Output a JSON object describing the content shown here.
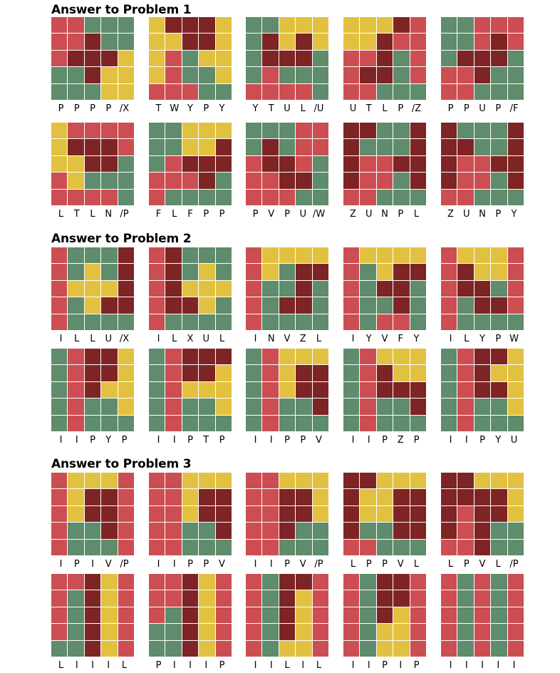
{
  "colors": {
    "R": "#cc4e52",
    "D": "#7e2424",
    "G": "#5e8c6c",
    "Y": "#e2c141"
  },
  "sections": [
    {
      "title": "Answer to Problem 1",
      "puzzles": [
        {
          "grid": [
            "RRGGG",
            "RRDGG",
            "RDDDY",
            "GGDYY",
            "GGGYY"
          ],
          "labels": [
            "P",
            "P",
            "P",
            "P",
            "/X"
          ]
        },
        {
          "grid": [
            "YDDDY",
            "YYDDY",
            "YRGYY",
            "YRGGY",
            "RRRGG"
          ],
          "labels": [
            "T",
            "W",
            "Y",
            "P",
            "Y"
          ]
        },
        {
          "grid": [
            "GGYYY",
            "GDYDY",
            "GDDDG",
            "GRGGG",
            "RRRRG"
          ],
          "labels": [
            "Y",
            "T",
            "U",
            "L",
            "/U"
          ]
        },
        {
          "grid": [
            "YYYDR",
            "YYDRR",
            "RRDGR",
            "RDDGR",
            "RRGGG"
          ],
          "labels": [
            "U",
            "T",
            "L",
            "P",
            "/Z"
          ]
        },
        {
          "grid": [
            "GGRRR",
            "GGRDR",
            "GDDDG",
            "RRDGG",
            "RRGGG"
          ],
          "labels": [
            "P",
            "P",
            "U",
            "P",
            "/F"
          ]
        }
      ]
    },
    {
      "title": "",
      "puzzles": [
        {
          "grid": [
            "YRRRR",
            "YDDDR",
            "YYDDG",
            "RYGGG",
            "RRRRG"
          ],
          "labels": [
            "L",
            "T",
            "L",
            "N",
            "/P"
          ]
        },
        {
          "grid": [
            "GGYYY",
            "GGYYD",
            "GRDDD",
            "RRRDG",
            "RGGGG"
          ],
          "labels": [
            "F",
            "L",
            "F",
            "P",
            "P"
          ]
        },
        {
          "grid": [
            "GGGRR",
            "GDGRR",
            "RDDRG",
            "RRDDG",
            "RRRGG"
          ],
          "labels": [
            "P",
            "V",
            "P",
            "U",
            "/W"
          ]
        },
        {
          "grid": [
            "DDGGD",
            "DGGGD",
            "DRRDD",
            "DRRGD",
            "RRGGG"
          ],
          "labels": [
            "Z",
            "U",
            "N",
            "P",
            "L"
          ]
        },
        {
          "grid": [
            "DGGGD",
            "DDGGD",
            "DRRDD",
            "DRRGD",
            "RRGGG"
          ],
          "labels": [
            "Z",
            "U",
            "N",
            "P",
            "Y"
          ]
        }
      ]
    },
    {
      "title": "Answer to Problem 2",
      "puzzles": [
        {
          "grid": [
            "RGGGD",
            "RGYGD",
            "RYYYD",
            "RGYDD",
            "RGGGG"
          ],
          "labels": [
            "I",
            "L",
            "L",
            "U",
            "/X"
          ]
        },
        {
          "grid": [
            "RDGGG",
            "RDGYG",
            "RDYYY",
            "RDDYG",
            "RGGGG"
          ],
          "labels": [
            "I",
            "L",
            "X",
            "U",
            "L"
          ]
        },
        {
          "grid": [
            "RYYYY",
            "RYGDD",
            "RGGDG",
            "RGDDG",
            "RGGGG"
          ],
          "labels": [
            "I",
            "N",
            "V",
            "Z",
            "L"
          ]
        },
        {
          "grid": [
            "RYYYY",
            "RGYDD",
            "RGDDG",
            "RGGDG",
            "RGRRG"
          ],
          "labels": [
            "I",
            "Y",
            "V",
            "F",
            "Y"
          ]
        },
        {
          "grid": [
            "RYYYR",
            "RDYYR",
            "RDDGR",
            "RGDDR",
            "RGGGG"
          ],
          "labels": [
            "I",
            "L",
            "Y",
            "P",
            "W"
          ]
        }
      ]
    },
    {
      "title": "",
      "puzzles": [
        {
          "grid": [
            "GRDDY",
            "GRDDY",
            "GRDYY",
            "GRGGY",
            "GRGGG"
          ],
          "labels": [
            "I",
            "I",
            "P",
            "Y",
            "P"
          ]
        },
        {
          "grid": [
            "GRDDD",
            "GRDDY",
            "GRYYY",
            "GRGGY",
            "GRGGG"
          ],
          "labels": [
            "I",
            "I",
            "P",
            "T",
            "P"
          ]
        },
        {
          "grid": [
            "GRYYY",
            "GRYDD",
            "GRYDD",
            "GRGGD",
            "GRGGG"
          ],
          "labels": [
            "I",
            "I",
            "P",
            "P",
            "V"
          ]
        },
        {
          "grid": [
            "GRYYY",
            "GRDYY",
            "GRDDD",
            "GRGGD",
            "GRGGG"
          ],
          "labels": [
            "I",
            "I",
            "P",
            "Z",
            "P"
          ]
        },
        {
          "grid": [
            "GRDDY",
            "GRDYY",
            "GRDDY",
            "GRGGY",
            "GRGGG"
          ],
          "labels": [
            "I",
            "I",
            "P",
            "Y",
            "U"
          ]
        }
      ]
    },
    {
      "title": "Answer to Problem 3",
      "puzzles": [
        {
          "grid": [
            "RYYYR",
            "RYDDR",
            "RYDDR",
            "RGGDR",
            "RGGGR"
          ],
          "labels": [
            "I",
            "P",
            "I",
            "V",
            "/P"
          ]
        },
        {
          "grid": [
            "RRYYY",
            "RRYDD",
            "RRYDD",
            "RRGGD",
            "RRGGG"
          ],
          "labels": [
            "I",
            "I",
            "P",
            "P",
            "V"
          ]
        },
        {
          "grid": [
            "RRYYY",
            "RRDDY",
            "RRDDY",
            "RRDGG",
            "RRGGG"
          ],
          "labels": [
            "I",
            "I",
            "P",
            "V",
            "/P"
          ]
        },
        {
          "grid": [
            "DDYYY",
            "DYYDD",
            "DYYDD",
            "DGGDD",
            "RRGGG"
          ],
          "labels": [
            "L",
            "P",
            "P",
            "V",
            "L"
          ]
        },
        {
          "grid": [
            "DDYYY",
            "DDDDY",
            "DRDDY",
            "DRDGG",
            "RRDGG"
          ],
          "labels": [
            "L",
            "P",
            "V",
            "L",
            "/P"
          ]
        }
      ]
    },
    {
      "title": "",
      "puzzles": [
        {
          "grid": [
            "RRDYR",
            "RGDYR",
            "RGDYR",
            "RGDYR",
            "GGDYR"
          ],
          "labels": [
            "L",
            "I",
            "I",
            "I",
            "L"
          ]
        },
        {
          "grid": [
            "RRDYR",
            "RRDYR",
            "RGDYR",
            "GGDYR",
            "GGDYR"
          ],
          "labels": [
            "P",
            "I",
            "I",
            "I",
            "P"
          ]
        },
        {
          "grid": [
            "RGDDR",
            "RGDYR",
            "RGDYR",
            "RGDYR",
            "RGYYR"
          ],
          "labels": [
            "I",
            "I",
            "L",
            "I",
            "L"
          ]
        },
        {
          "grid": [
            "RGDDR",
            "RGDDR",
            "RGDYR",
            "RGYYR",
            "RGYYR"
          ],
          "labels": [
            "I",
            "I",
            "P",
            "I",
            "P"
          ]
        },
        {
          "grid": [
            "RGRGR",
            "RGRGR",
            "RGRGR",
            "RGRGR",
            "RGRGR"
          ],
          "labels": [
            "I",
            "I",
            "I",
            "I",
            "I"
          ]
        }
      ]
    }
  ]
}
